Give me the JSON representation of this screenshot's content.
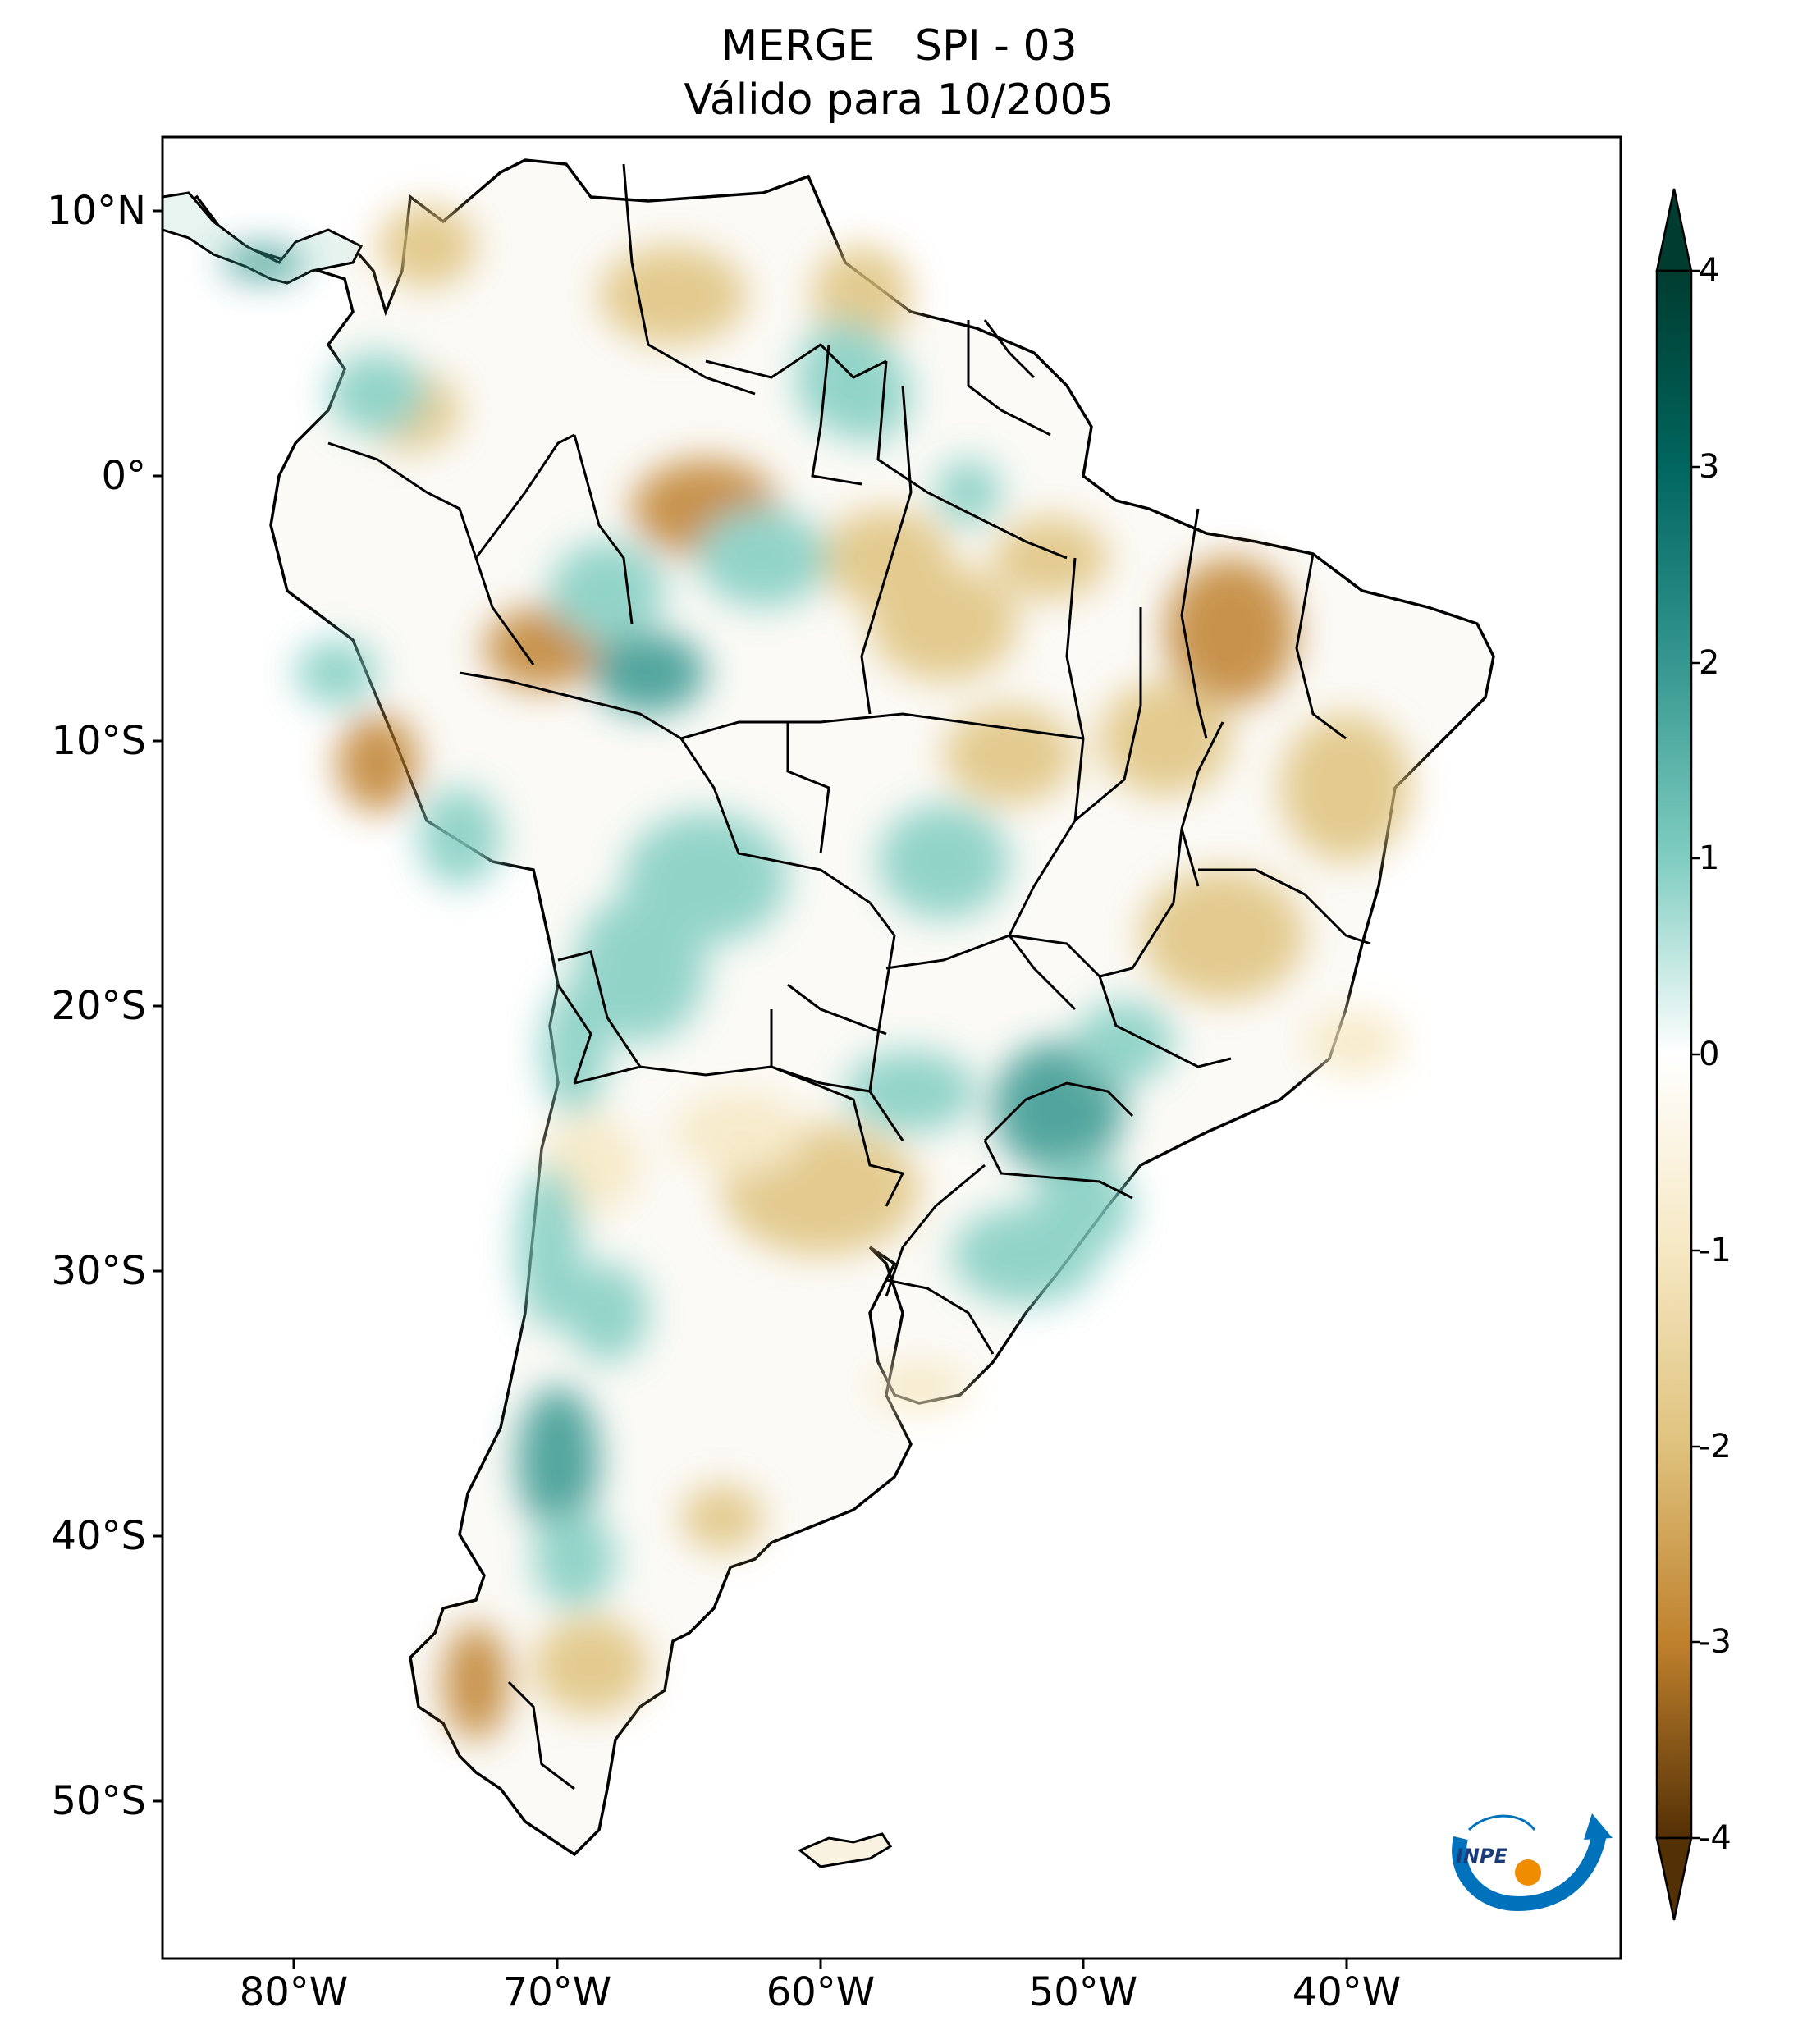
{
  "title": {
    "line1": "MERGE   SPI - 03",
    "line2": "Válido para 10/2005"
  },
  "axes": {
    "lat_ticks": [
      "10°N",
      "0°",
      "10°S",
      "20°S",
      "30°S",
      "40°S",
      "50°S"
    ],
    "lat_values": [
      10,
      0,
      -10,
      -20,
      -30,
      -40,
      -50
    ],
    "lon_ticks": [
      "80°W",
      "70°W",
      "60°W",
      "50°W",
      "40°W"
    ],
    "lon_values": [
      -80,
      -70,
      -60,
      -50,
      -40
    ],
    "lat_range": [
      -56,
      12.5
    ],
    "lon_range": [
      -85,
      -29.5
    ]
  },
  "colorbar": {
    "ticks": [
      "4",
      "3",
      "2",
      "1",
      "0",
      "-1",
      "-2",
      "-3",
      "-4"
    ],
    "tick_values": [
      4,
      3,
      2,
      1,
      0,
      -1,
      -2,
      -3,
      -4
    ],
    "range": [
      -4,
      4
    ],
    "extend": "both",
    "colormap": "BrBG",
    "colors": {
      "max": "#003c30",
      "high": "#01665e",
      "mid_high": "#35978f",
      "light_high": "#c7eae5",
      "neutral": "#ffffff",
      "light_low": "#f6e8c3",
      "mid_low": "#dfc27d",
      "low": "#bf812d",
      "min": "#543005"
    }
  },
  "logo": {
    "text": "INPE",
    "icon": "inpe-logo"
  }
}
